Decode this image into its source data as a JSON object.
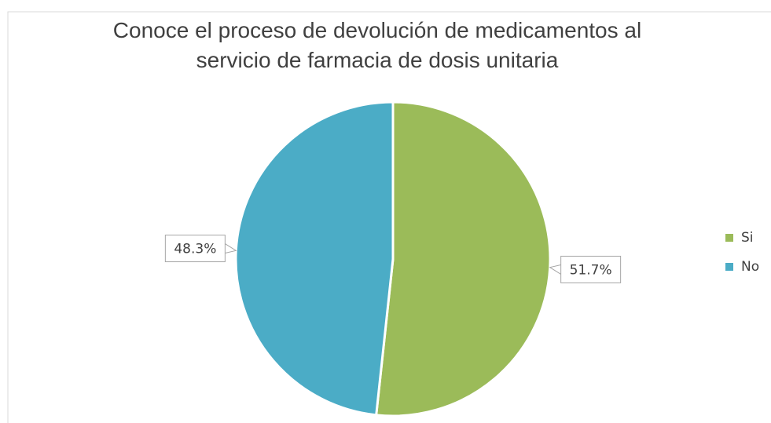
{
  "chart_data": {
    "type": "pie",
    "title": "Conoce el proceso de devolución de medicamentos al servicio de farmacia de dosis unitaria",
    "categories": [
      "Si",
      "No"
    ],
    "values": [
      51.7,
      48.3
    ],
    "value_labels": [
      "51.7%",
      "48.3%"
    ],
    "colors": [
      "#9bbb59",
      "#4bacc6"
    ],
    "legend": "right"
  }
}
